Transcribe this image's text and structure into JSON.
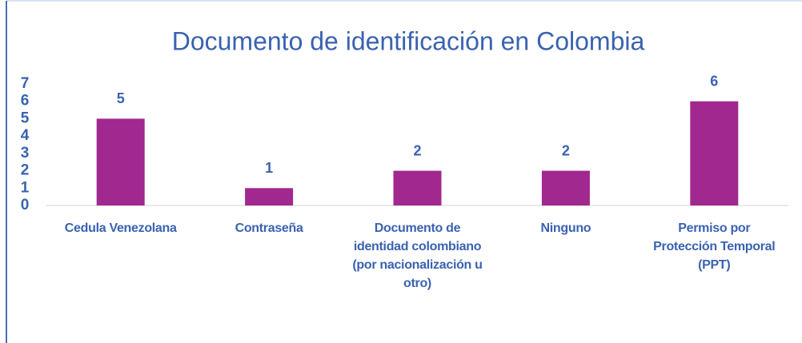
{
  "chart_data": {
    "type": "bar",
    "title": "Documento de identificación en Colombia",
    "categories": [
      "Cedula Venezolana",
      "Contraseña",
      "Documento de identidad colombiano (por nacionalización u otro)",
      "Ninguno",
      "Permiso por Protección Temporal (PPT)"
    ],
    "values": [
      5,
      1,
      2,
      2,
      6
    ],
    "color": "#a0288f",
    "ylim": [
      0,
      7
    ],
    "yticks": [
      0,
      1,
      2,
      3,
      4,
      5,
      6,
      7
    ],
    "grid": false
  }
}
